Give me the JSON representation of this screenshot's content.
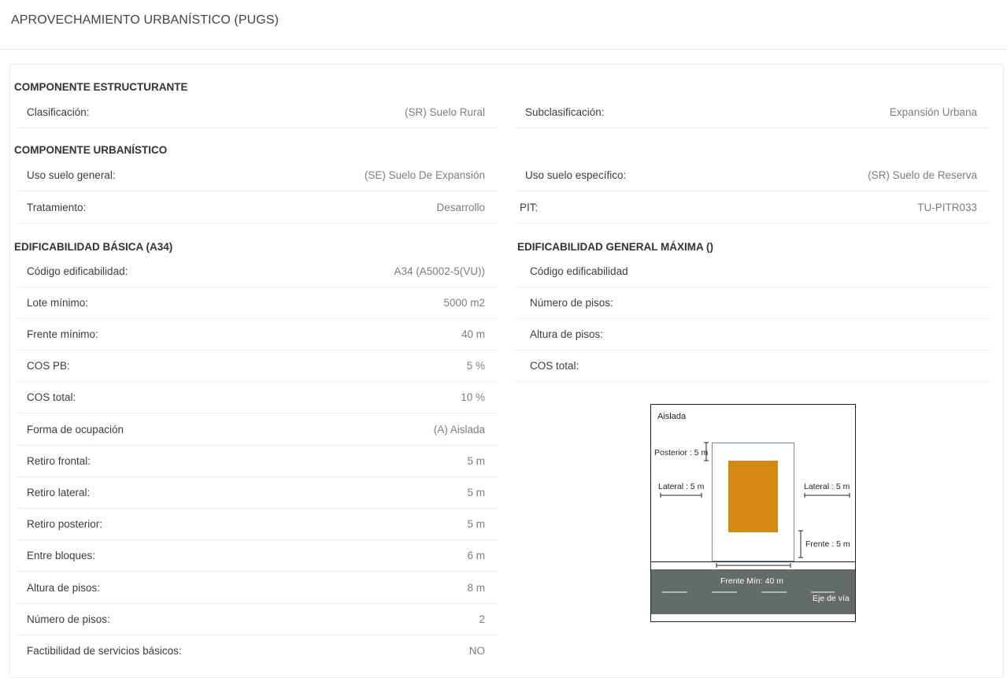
{
  "page": {
    "title": "APROVECHAMIENTO URBANÍSTICO (PUGS)"
  },
  "estructurante": {
    "title": "COMPONENTE ESTRUCTURANTE",
    "clasificacion": {
      "label": "Clasificación:",
      "value": "(SR) Suelo Rural"
    },
    "subclasificacion": {
      "label": "Subclasificación:",
      "value": "Expansión Urbana"
    }
  },
  "urbanistico": {
    "title": "COMPONENTE URBANÍSTICO",
    "uso_general": {
      "label": "Uso suelo general:",
      "value": "(SE) Suelo De Expansión"
    },
    "uso_especifico": {
      "label": "Uso suelo específico:",
      "value": "(SR) Suelo de Reserva"
    },
    "tratamiento": {
      "label": "Tratamiento:",
      "value": "Desarrollo"
    },
    "pit": {
      "label": "PIT:",
      "value": "TU-PITR033"
    }
  },
  "basica": {
    "title": "EDIFICABILIDAD BÁSICA (A34)",
    "rows": [
      {
        "label": "Código edificabilidad:",
        "value": "A34 (A5002-5(VU))"
      },
      {
        "label": "Lote mínimo:",
        "value": "5000 m2"
      },
      {
        "label": "Frente mínimo:",
        "value": "40 m"
      },
      {
        "label": "COS PB:",
        "value": "5 %"
      },
      {
        "label": "COS total:",
        "value": "10 %"
      },
      {
        "label": "Forma de ocupación",
        "value": "(A) Aislada"
      },
      {
        "label": "Retiro frontal:",
        "value": "5 m"
      },
      {
        "label": "Retiro lateral:",
        "value": "5 m"
      },
      {
        "label": "Retiro posterior:",
        "value": "5 m"
      },
      {
        "label": "Entre bloques:",
        "value": "6 m"
      },
      {
        "label": "Altura de pisos:",
        "value": "8 m"
      },
      {
        "label": "Número de pisos:",
        "value": "2"
      },
      {
        "label": "Factibilidad de servicios básicos:",
        "value": "NO"
      }
    ]
  },
  "maxima": {
    "title": "EDIFICABILIDAD GENERAL MÁXIMA ()",
    "rows": [
      {
        "label": "Código edificabilidad"
      },
      {
        "label": "Número de pisos:"
      },
      {
        "label": "Altura de pisos:"
      },
      {
        "label": "COS total:"
      }
    ]
  },
  "diagram": {
    "title": "Aislada",
    "posterior": "Posterior : 5 m",
    "lateral_left": "Lateral : 5 m",
    "lateral_right": "Lateral : 5 m",
    "frente": "Frente : 5 m",
    "frente_min": "Frente Mín: 40 m",
    "eje_via": "Eje de vía",
    "building_color": "#d48a12",
    "road_color": "#646b6b"
  }
}
